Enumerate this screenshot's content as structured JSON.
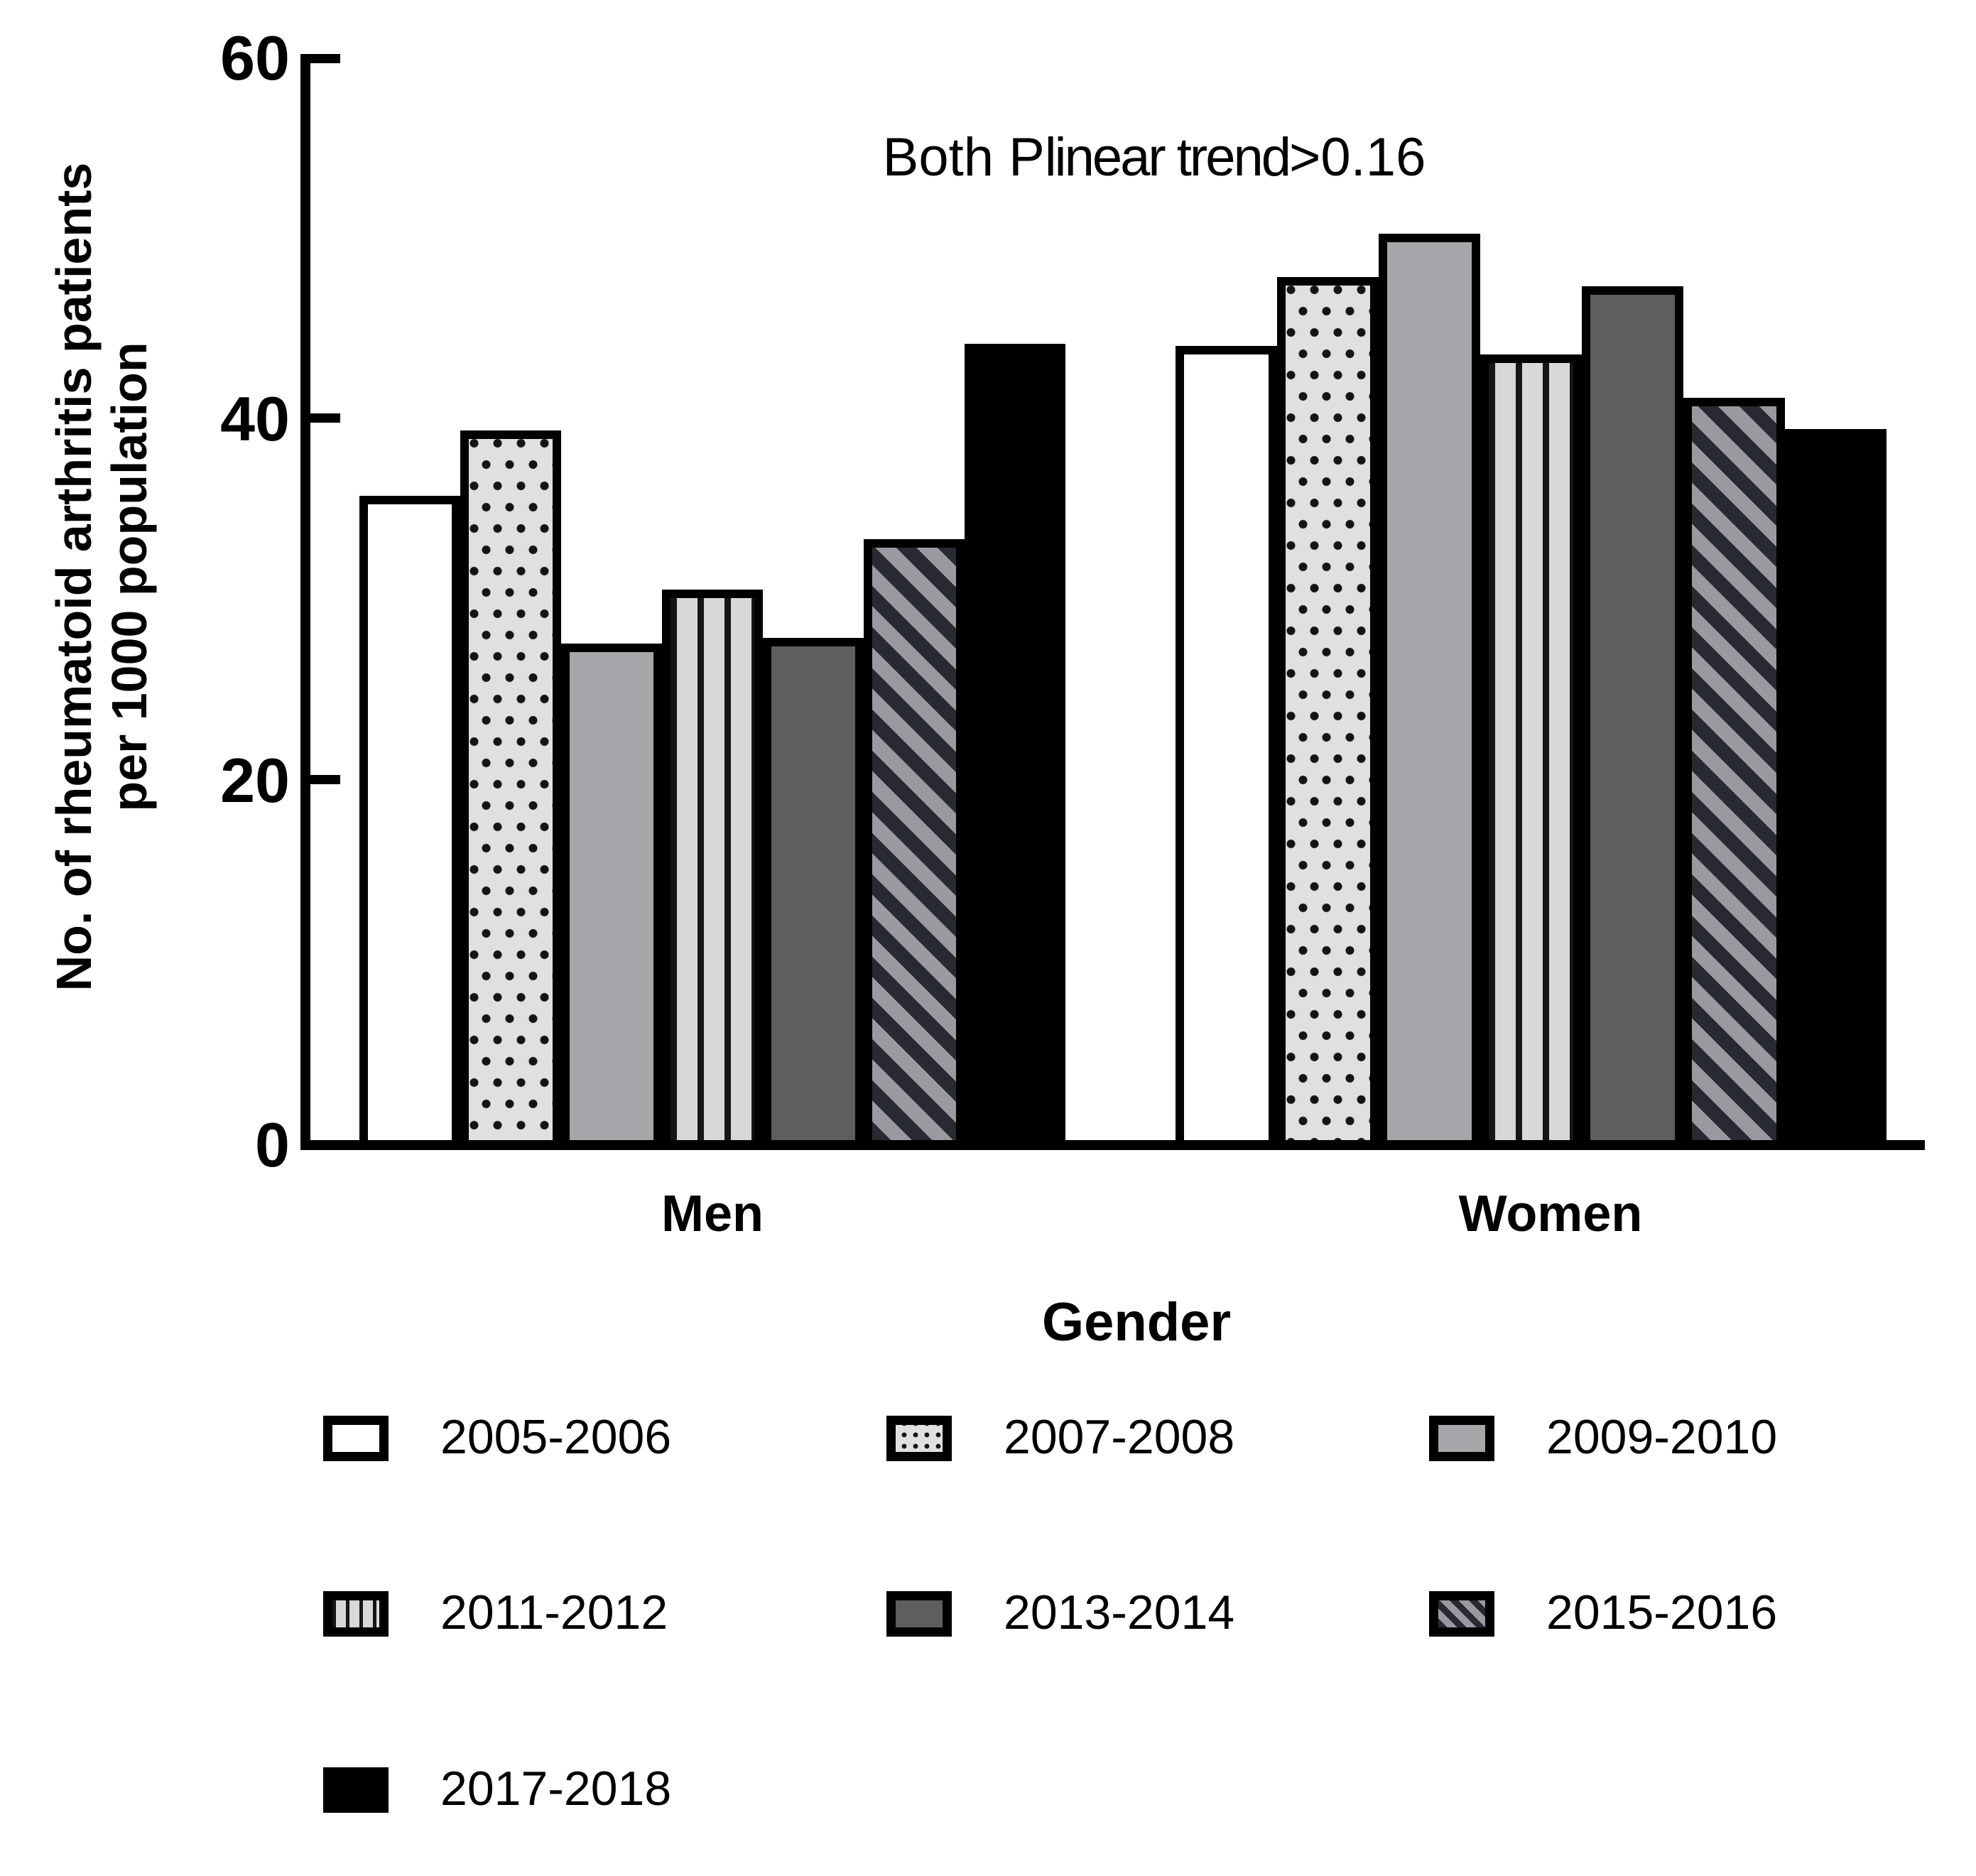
{
  "figure": {
    "y_axis": {
      "title_line1": "No. of rheumatoid arthritis patients",
      "title_line2": "per 1000 population",
      "tick_labels": [
        "60",
        "40",
        "20",
        "0"
      ]
    },
    "x_axis": {
      "title": "Gender",
      "category_labels": [
        "Men",
        "Women"
      ]
    },
    "annotation": {
      "prefix": "Both P",
      "subscript": "linear trend",
      "suffix": ">0.16"
    }
  },
  "chart_data": {
    "type": "bar",
    "title": "",
    "categories": [
      "Men",
      "Women"
    ],
    "xlabel": "Gender",
    "ylabel": "No. of rheumatoid arthritis patients per 1000 population",
    "ylim": [
      0,
      60
    ],
    "yticks": [
      0,
      20,
      40,
      60
    ],
    "grid": false,
    "legend_position": "bottom",
    "annotation": "Both Plinear trend>0.16",
    "series": [
      {
        "name": "2005-2006",
        "pattern": "white",
        "values": [
          35.7,
          44.0
        ]
      },
      {
        "name": "2007-2008",
        "pattern": "dots",
        "values": [
          39.3,
          47.8
        ]
      },
      {
        "name": "2009-2010",
        "pattern": "gray",
        "values": [
          27.5,
          50.2
        ]
      },
      {
        "name": "2011-2012",
        "pattern": "vstripes",
        "values": [
          30.5,
          43.5
        ]
      },
      {
        "name": "2013-2014",
        "pattern": "darkgray",
        "values": [
          27.8,
          47.3
        ]
      },
      {
        "name": "2015-2016",
        "pattern": "diagonal",
        "values": [
          33.3,
          41.1
        ]
      },
      {
        "name": "2017-2018",
        "pattern": "black",
        "values": [
          44.1,
          39.4
        ]
      }
    ]
  },
  "colors": {
    "axis": "#000000",
    "bar_border": "#000000",
    "light_gray_fill": "#a7a5aa",
    "dark_gray_fill": "#5e5e5e",
    "dot_background": "#e0e0e0",
    "stripe_dark": "#282a31",
    "stripe_gray": "#9b99a0",
    "black_fill": "#000000"
  }
}
